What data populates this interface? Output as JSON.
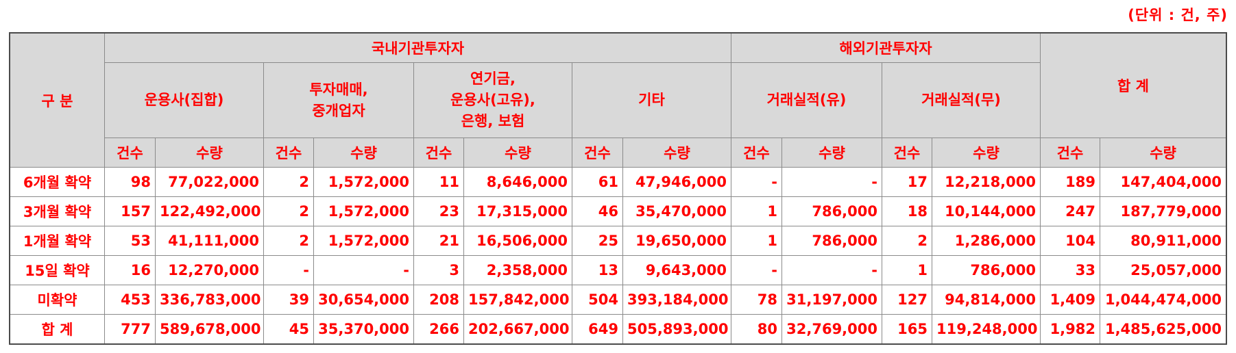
{
  "unit_note": "(단위 : 건, 주)",
  "header": {
    "category": "구 분",
    "domestic": "국내기관투자자",
    "foreign": "해외기관투자자",
    "total": "합 계",
    "groups": {
      "collective": "운용사(집합)",
      "dealer_line1": "투자매매,",
      "dealer_line2": "중개업자",
      "pension_line1": "연기금,",
      "pension_line2": "운용사(고유),",
      "pension_line3": "은행, 보험",
      "other": "기타",
      "record_yes": "거래실적(유)",
      "record_no": "거래실적(무)"
    },
    "count": "건수",
    "qty": "수량"
  },
  "rows": [
    {
      "label": "6개월 확약",
      "cells": [
        "98",
        "77,022,000",
        "2",
        "1,572,000",
        "11",
        "8,646,000",
        "61",
        "47,946,000",
        "-",
        "-",
        "17",
        "12,218,000",
        "189",
        "147,404,000"
      ]
    },
    {
      "label": "3개월 확약",
      "cells": [
        "157",
        "122,492,000",
        "2",
        "1,572,000",
        "23",
        "17,315,000",
        "46",
        "35,470,000",
        "1",
        "786,000",
        "18",
        "10,144,000",
        "247",
        "187,779,000"
      ]
    },
    {
      "label": "1개월 확약",
      "cells": [
        "53",
        "41,111,000",
        "2",
        "1,572,000",
        "21",
        "16,506,000",
        "25",
        "19,650,000",
        "1",
        "786,000",
        "2",
        "1,286,000",
        "104",
        "80,911,000"
      ]
    },
    {
      "label": "15일 확약",
      "cells": [
        "16",
        "12,270,000",
        "-",
        "-",
        "3",
        "2,358,000",
        "13",
        "9,643,000",
        "-",
        "-",
        "1",
        "786,000",
        "33",
        "25,057,000"
      ]
    },
    {
      "label": "미확약",
      "cells": [
        "453",
        "336,783,000",
        "39",
        "30,654,000",
        "208",
        "157,842,000",
        "504",
        "393,184,000",
        "78",
        "31,197,000",
        "127",
        "94,814,000",
        "1,409",
        "1,044,474,000"
      ]
    },
    {
      "label": "합 계",
      "cells": [
        "777",
        "589,678,000",
        "45",
        "35,370,000",
        "266",
        "202,667,000",
        "649",
        "505,893,000",
        "80",
        "32,769,000",
        "165",
        "119,248,000",
        "1,982",
        "1,485,625,000"
      ]
    }
  ]
}
